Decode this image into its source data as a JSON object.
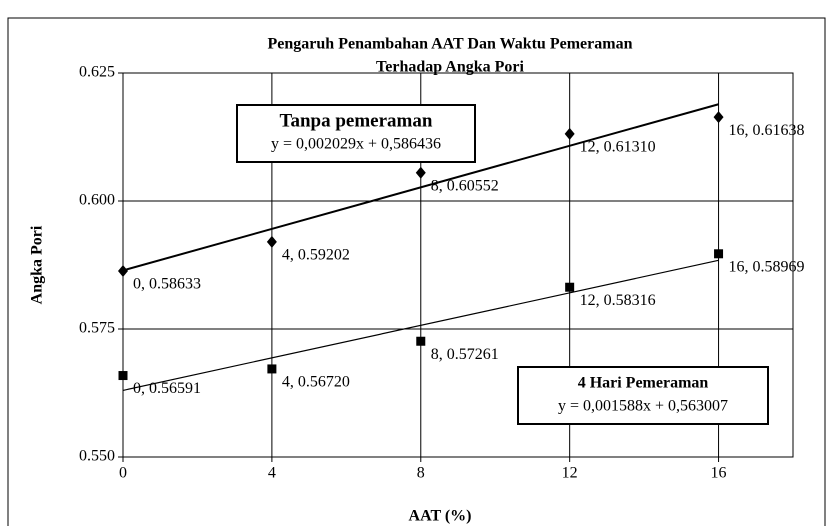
{
  "chart_data": {
    "type": "scatter",
    "title": "Pengaruh Penambahan AAT Dan Waktu Pemeraman",
    "subtitle": "Terhadap Angka Pori",
    "x_label": "AAT (%)",
    "y_label": "Angka Pori",
    "xlim": [
      0,
      18
    ],
    "xticks": [
      0,
      4,
      8,
      12,
      16
    ],
    "ylim": [
      0.55,
      0.625
    ],
    "yticks": [
      {
        "value": 0.55,
        "label": "0.550"
      },
      0.575,
      {
        "value": 0.6,
        "label": "0.600"
      },
      0.625
    ],
    "grid": true,
    "series": [
      {
        "name": "Tanpa pemeraman",
        "color": "#000000",
        "marker": "diamond",
        "x": [
          0,
          4,
          8,
          12,
          16
        ],
        "values": [
          0.58633,
          0.59202,
          0.60552,
          0.6131,
          0.61638
        ],
        "value_labels": [
          "0, 0.58633",
          "4, 0.59202",
          "8, 0.60552",
          "12, 0.61310",
          "16, 0.61638"
        ],
        "trendline": {
          "slope": 0.002029,
          "intercept": 0.586436,
          "label": "y = 0,002029x + 0,586436"
        }
      },
      {
        "name": "4 Hari Pemeraman",
        "color": "#000000",
        "marker": "square",
        "x": [
          0,
          4,
          8,
          12,
          16
        ],
        "values": [
          0.56591,
          0.5672,
          0.57261,
          0.58316,
          0.58969
        ],
        "value_labels": [
          "0, 0.56591",
          "4, 0.56720",
          "8, 0.57261",
          "12, 0.58316",
          "16, 0.58969"
        ],
        "trendline": {
          "slope": 0.001588,
          "intercept": 0.563007,
          "label": "y = 0,001588x + 0,563007"
        }
      }
    ]
  }
}
